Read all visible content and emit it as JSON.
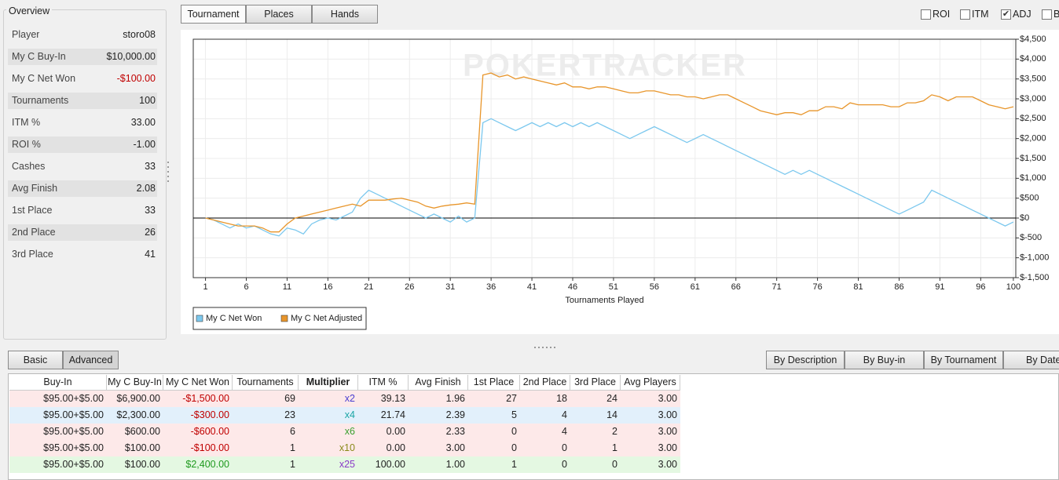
{
  "overview": {
    "title": "Overview",
    "rows": [
      [
        "Player",
        "storo08"
      ],
      [
        "My C Buy-In",
        "$10,000.00"
      ],
      [
        "My C Net Won",
        "-$100.00"
      ],
      [
        "Tournaments",
        "100"
      ],
      [
        "ITM %",
        "33.00"
      ],
      [
        "ROI %",
        "-1.00"
      ],
      [
        "Cashes",
        "33"
      ],
      [
        "Avg Finish",
        "2.08"
      ],
      [
        "1st Place",
        "33"
      ],
      [
        "2nd Place",
        "26"
      ],
      [
        "3rd Place",
        "41"
      ]
    ]
  },
  "view_tabs": [
    "Tournament",
    "Places",
    "Hands"
  ],
  "options": [
    {
      "label": "ROI",
      "checked": false
    },
    {
      "label": "ITM",
      "checked": false
    },
    {
      "label": "ADJ",
      "checked": true
    },
    {
      "label": "B",
      "checked": false
    }
  ],
  "chart_data": {
    "type": "line",
    "watermark": "POKERTRACKER",
    "xlabel": "Tournaments Played",
    "grid": true,
    "legend": "bottom-left",
    "x": [
      1,
      2,
      3,
      4,
      5,
      6,
      7,
      8,
      9,
      10,
      11,
      12,
      13,
      14,
      15,
      16,
      17,
      18,
      19,
      20,
      21,
      22,
      23,
      24,
      25,
      26,
      27,
      28,
      29,
      30,
      31,
      32,
      33,
      34,
      35,
      36,
      37,
      38,
      39,
      40,
      41,
      42,
      43,
      44,
      45,
      46,
      47,
      48,
      49,
      50,
      51,
      52,
      53,
      54,
      55,
      56,
      57,
      58,
      59,
      60,
      61,
      62,
      63,
      64,
      65,
      66,
      67,
      68,
      69,
      70,
      71,
      72,
      73,
      74,
      75,
      76,
      77,
      78,
      79,
      80,
      81,
      82,
      83,
      84,
      85,
      86,
      87,
      88,
      89,
      90,
      91,
      92,
      93,
      94,
      95,
      96,
      97,
      98,
      99,
      100
    ],
    "xlim": [
      -0.5,
      100.3
    ],
    "xticks": [
      1,
      6,
      11,
      16,
      21,
      26,
      31,
      36,
      41,
      46,
      51,
      56,
      61,
      66,
      71,
      76,
      81,
      86,
      91,
      96,
      100
    ],
    "ylim": [
      -1500,
      4500
    ],
    "yticks": [
      {
        "value": -1500,
        "label": "$-1,500"
      },
      {
        "value": -1000,
        "label": "$-1,000"
      },
      {
        "value": -500,
        "label": "$-500"
      },
      {
        "value": 0,
        "label": "$0"
      },
      {
        "value": 500,
        "label": "$500"
      },
      {
        "value": 1000,
        "label": "$1,000"
      },
      {
        "value": 1500,
        "label": "$1,500"
      },
      {
        "value": 2000,
        "label": "$2,000"
      },
      {
        "value": 2500,
        "label": "$2,500"
      },
      {
        "value": 3000,
        "label": "$3,000"
      },
      {
        "value": 3500,
        "label": "$3,500"
      },
      {
        "value": 4000,
        "label": "$4,000"
      },
      {
        "value": 4500,
        "label": "$4,500"
      }
    ],
    "series": [
      {
        "name": "My C Net Won",
        "color": "#7cc8ee",
        "values": [
          0,
          -50,
          -150,
          -250,
          -150,
          -250,
          -200,
          -300,
          -400,
          -450,
          -250,
          -300,
          -400,
          -150,
          -50,
          0,
          -50,
          50,
          150,
          500,
          700,
          600,
          500,
          400,
          300,
          200,
          100,
          0,
          100,
          0,
          -100,
          50,
          -100,
          0,
          2400,
          2500,
          2400,
          2300,
          2200,
          2300,
          2400,
          2300,
          2400,
          2300,
          2400,
          2300,
          2400,
          2300,
          2400,
          2300,
          2200,
          2100,
          2000,
          2100,
          2200,
          2300,
          2200,
          2100,
          2000,
          1900,
          2000,
          2100,
          2000,
          1900,
          1800,
          1700,
          1600,
          1500,
          1400,
          1300,
          1200,
          1100,
          1200,
          1100,
          1200,
          1100,
          1000,
          900,
          800,
          700,
          600,
          500,
          400,
          300,
          200,
          100,
          200,
          300,
          400,
          700,
          600,
          500,
          400,
          300,
          200,
          100,
          0,
          -100,
          -200,
          -100
        ]
      },
      {
        "name": "My C Net Adjusted",
        "color": "#e8952a",
        "values": [
          0,
          -50,
          -100,
          -150,
          -200,
          -200,
          -200,
          -250,
          -350,
          -350,
          -150,
          0,
          50,
          100,
          150,
          200,
          250,
          300,
          350,
          300,
          450,
          450,
          450,
          480,
          500,
          450,
          400,
          300,
          250,
          300,
          330,
          350,
          380,
          350,
          3600,
          3650,
          3550,
          3600,
          3500,
          3550,
          3500,
          3450,
          3400,
          3350,
          3400,
          3300,
          3300,
          3250,
          3300,
          3300,
          3250,
          3200,
          3150,
          3150,
          3200,
          3200,
          3150,
          3100,
          3100,
          3050,
          3050,
          3000,
          3050,
          3100,
          3100,
          3000,
          2900,
          2800,
          2700,
          2650,
          2600,
          2650,
          2650,
          2600,
          2700,
          2700,
          2800,
          2800,
          2750,
          2900,
          2850,
          2850,
          2850,
          2850,
          2800,
          2800,
          2900,
          2900,
          2950,
          3100,
          3050,
          2950,
          3050,
          3050,
          3050,
          2950,
          2850,
          2800,
          2750,
          2800
        ]
      }
    ]
  },
  "sub_tabs": [
    "Basic",
    "Advanced"
  ],
  "group_tabs": [
    "By Description",
    "By Buy-in",
    "By Tournament",
    "By Date"
  ],
  "table": {
    "columns": [
      "Buy-In",
      "My C Buy-In",
      "My C Net Won",
      "Tournaments",
      "Multiplier",
      "ITM %",
      "Avg Finish",
      "1st Place",
      "2nd Place",
      "3rd Place",
      "Avg Players"
    ],
    "rows": [
      [
        "$95.00+$5.00",
        "$6,900.00",
        "-$1,500.00",
        "69",
        "x2",
        "39.13",
        "1.96",
        "27",
        "18",
        "24",
        "3.00"
      ],
      [
        "$95.00+$5.00",
        "$2,300.00",
        "-$300.00",
        "23",
        "x4",
        "21.74",
        "2.39",
        "5",
        "4",
        "14",
        "3.00"
      ],
      [
        "$95.00+$5.00",
        "$600.00",
        "-$600.00",
        "6",
        "x6",
        "0.00",
        "2.33",
        "0",
        "4",
        "2",
        "3.00"
      ],
      [
        "$95.00+$5.00",
        "$100.00",
        "-$100.00",
        "1",
        "x10",
        "0.00",
        "3.00",
        "0",
        "0",
        "1",
        "3.00"
      ],
      [
        "$95.00+$5.00",
        "$100.00",
        "$2,400.00",
        "1",
        "x25",
        "100.00",
        "1.00",
        "1",
        "0",
        "0",
        "3.00"
      ]
    ]
  }
}
